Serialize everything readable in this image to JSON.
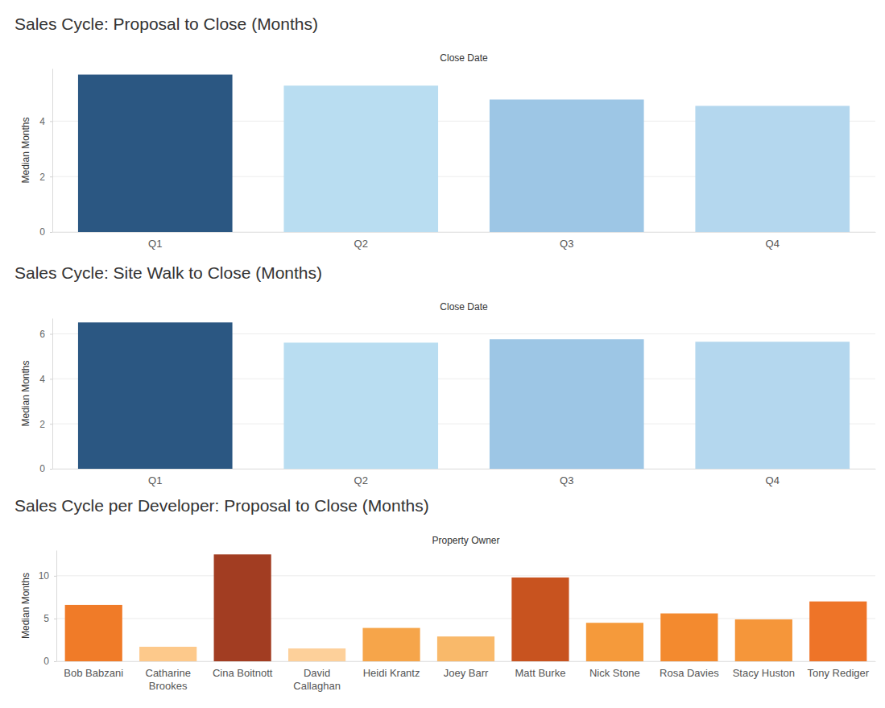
{
  "chart_data": [
    {
      "type": "bar",
      "title": "Sales Cycle: Proposal to Close (Months)",
      "xlabel": "Close Date",
      "ylabel": "Median Months",
      "categories": [
        "Q1",
        "Q2",
        "Q3",
        "Q4"
      ],
      "values": [
        5.68,
        5.28,
        4.78,
        4.55
      ],
      "colors": [
        "#2b5782",
        "#b9ddf1",
        "#9dc6e5",
        "#b4d7ee"
      ],
      "ylim": [
        0,
        5.9
      ],
      "yticks": [
        0,
        2,
        4
      ],
      "grid": true
    },
    {
      "type": "bar",
      "title": "Sales Cycle: Site Walk to Close (Months)",
      "xlabel": "Close Date",
      "ylabel": "Median Months",
      "categories": [
        "Q1",
        "Q2",
        "Q3",
        "Q4"
      ],
      "values": [
        6.51,
        5.61,
        5.76,
        5.65
      ],
      "colors": [
        "#2b5782",
        "#b9ddf1",
        "#9dc6e5",
        "#b4d7ee"
      ],
      "ylim": [
        0,
        6.7
      ],
      "yticks": [
        0,
        2,
        4,
        6
      ],
      "grid": true
    },
    {
      "type": "bar",
      "title": "Sales Cycle per Developer: Proposal to Close (Months)",
      "xlabel": "Property Owner",
      "ylabel": "Median Months",
      "categories": [
        "Bob Babzani",
        "Catharine Brookes",
        "Cina Boitnott",
        "David Callaghan",
        "Heidi Krantz",
        "Joey Barr",
        "Matt Burke",
        "Nick Stone",
        "Rosa Davies",
        "Stacy Huston",
        "Tony Rediger"
      ],
      "values": [
        6.6,
        1.7,
        12.5,
        1.5,
        3.9,
        2.9,
        9.8,
        4.5,
        5.6,
        4.9,
        7.0
      ],
      "colors": [
        "#f07b28",
        "#fdc98b",
        "#a23d22",
        "#fdd09a",
        "#f6a54a",
        "#f9b96a",
        "#c8531f",
        "#f59a3b",
        "#f38a2f",
        "#f5963a",
        "#ee7428"
      ],
      "ylim": [
        0,
        13
      ],
      "yticks": [
        0,
        5,
        10
      ],
      "grid": true
    }
  ]
}
